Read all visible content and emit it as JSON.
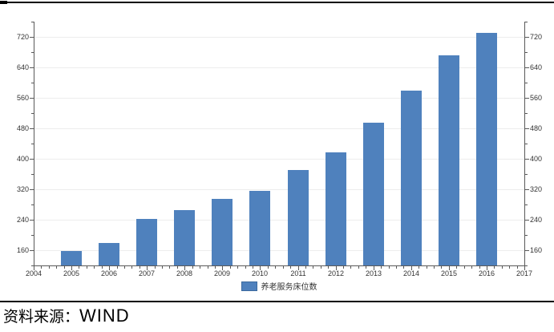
{
  "chart_data": {
    "type": "bar",
    "title": "",
    "series_name": "养老服务床位数",
    "categories": [
      "2005",
      "2006",
      "2007",
      "2008",
      "2009",
      "2010",
      "2011",
      "2012",
      "2013",
      "2014",
      "2015",
      "2016"
    ],
    "values": [
      158,
      180,
      242,
      266,
      294,
      316,
      370,
      416,
      494,
      578,
      672,
      730
    ],
    "bar_color": "#4f81bd",
    "grid": true,
    "legend": {
      "label": "养老服务床位数",
      "position": "bottom"
    },
    "x_axis": {
      "min": 2004,
      "max": 2017,
      "tick_labels": [
        "2004",
        "2005",
        "2006",
        "2007",
        "2008",
        "2009",
        "2010",
        "2011",
        "2012",
        "2013",
        "2014",
        "2015",
        "2016",
        "2017"
      ],
      "minor_divisions_per_interval": 5
    },
    "y_axis": {
      "min": 120,
      "max": 760,
      "tick_values": [
        160,
        240,
        320,
        400,
        480,
        560,
        640,
        720
      ],
      "tick_labels": [
        "160",
        "240",
        "320",
        "400",
        "480",
        "560",
        "640",
        "720"
      ],
      "minor_step": 40,
      "dual_axis": true
    }
  },
  "footer": {
    "source_label": "资料来源：",
    "source_value": "WIND"
  }
}
